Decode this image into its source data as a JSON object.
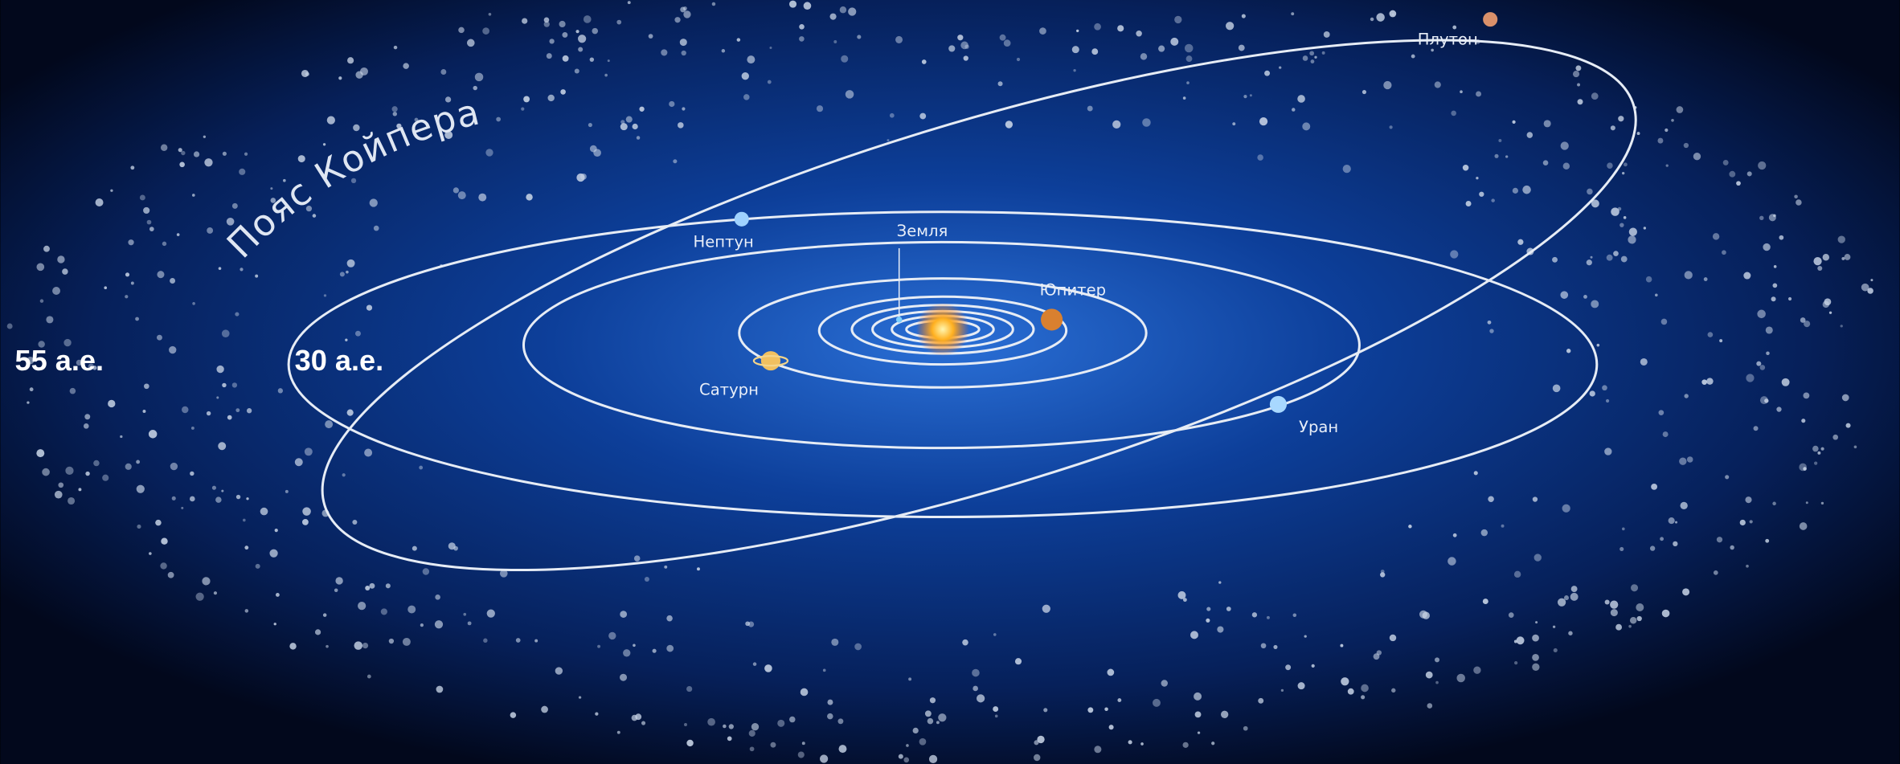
{
  "title": "Пояс Койпера",
  "distance_labels": [
    "55 а.е.",
    "30 а.е."
  ],
  "planets": [
    {
      "label": "Земля"
    },
    {
      "label": "Юпитер"
    },
    {
      "label": "Сатурн"
    },
    {
      "label": "Уран"
    },
    {
      "label": "Нептун"
    },
    {
      "label": "Плутон"
    }
  ]
}
